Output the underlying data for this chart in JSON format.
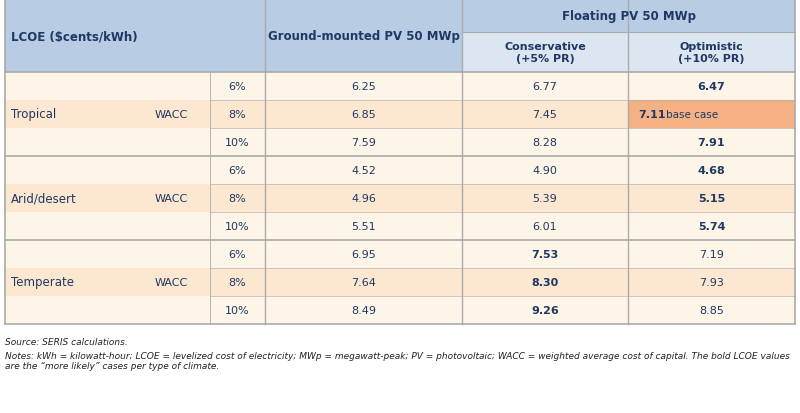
{
  "title_col1": "LCOE ($cents/kWh)",
  "col2_header": "Ground-mounted PV 50 MWp",
  "col3_header": "Floating PV 50 MWp",
  "col3a_header": "Conservative\n(+5% PR)",
  "col3b_header": "Optimistic\n(+10% PR)",
  "rows": [
    {
      "climate": "Tropical",
      "wacc_show": true,
      "wacc": "6%",
      "ground": "6.25",
      "conservative": "6.77",
      "optimistic": "6.47",
      "bold_col": "optimistic",
      "highlight": false
    },
    {
      "climate": "",
      "wacc_show": false,
      "wacc": "8%",
      "ground": "6.85",
      "conservative": "7.45",
      "optimistic": "7.11",
      "bold_col": "optimistic",
      "highlight": true
    },
    {
      "climate": "",
      "wacc_show": false,
      "wacc": "10%",
      "ground": "7.59",
      "conservative": "8.28",
      "optimistic": "7.91",
      "bold_col": "optimistic",
      "highlight": false
    },
    {
      "climate": "Arid/desert",
      "wacc_show": true,
      "wacc": "6%",
      "ground": "4.52",
      "conservative": "4.90",
      "optimistic": "4.68",
      "bold_col": "optimistic",
      "highlight": false
    },
    {
      "climate": "",
      "wacc_show": false,
      "wacc": "8%",
      "ground": "4.96",
      "conservative": "5.39",
      "optimistic": "5.15",
      "bold_col": "optimistic",
      "highlight": false
    },
    {
      "climate": "",
      "wacc_show": false,
      "wacc": "10%",
      "ground": "5.51",
      "conservative": "6.01",
      "optimistic": "5.74",
      "bold_col": "optimistic",
      "highlight": false
    },
    {
      "climate": "Temperate",
      "wacc_show": true,
      "wacc": "6%",
      "ground": "6.95",
      "conservative": "7.53",
      "optimistic": "7.19",
      "bold_col": "conservative",
      "highlight": false
    },
    {
      "climate": "",
      "wacc_show": false,
      "wacc": "8%",
      "ground": "7.64",
      "conservative": "8.30",
      "optimistic": "7.93",
      "bold_col": "conservative",
      "highlight": false
    },
    {
      "climate": "",
      "wacc_show": false,
      "wacc": "10%",
      "ground": "8.49",
      "conservative": "9.26",
      "optimistic": "8.85",
      "bold_col": "conservative",
      "highlight": false
    }
  ],
  "source_text": "Source: SERIS calculations.",
  "notes_text": "Notes: kWh = kilowatt-hour; LCOE = levelized cost of electricity; MWp = megawatt-peak; PV = photovoltaic; WACC = weighted average cost of capital. The bold LCOE values are the “more likely” cases per type of climate.",
  "header_bg": "#b8cce4",
  "subheader_bg": "#dce6f1",
  "row_bg_light": "#fdf5e8",
  "row_bg_alt": "#fce8d0",
  "highlight_bg": "#f4b183",
  "border_color": "#aaaaaa",
  "text_color": "#1f3864"
}
